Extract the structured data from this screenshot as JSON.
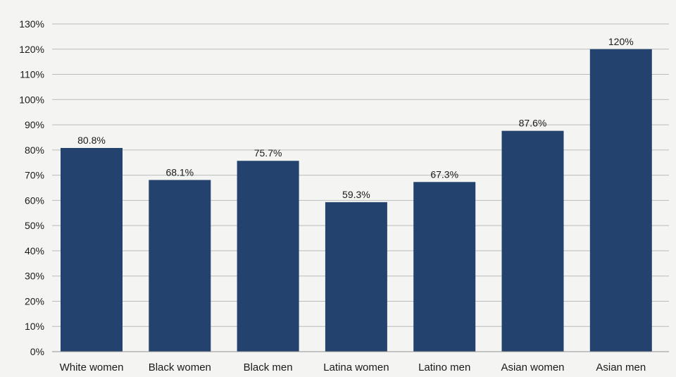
{
  "chart_data": {
    "type": "bar",
    "categories": [
      "White women",
      "Black women",
      "Black men",
      "Latina women",
      "Latino men",
      "Asian women",
      "Asian men"
    ],
    "values": [
      80.8,
      68.1,
      75.7,
      59.3,
      67.3,
      87.6,
      120
    ],
    "value_labels": [
      "80.8%",
      "68.1%",
      "75.7%",
      "59.3%",
      "67.3%",
      "87.6%",
      "120%"
    ],
    "ylim": [
      0,
      130
    ],
    "yticks": [
      0,
      10,
      20,
      30,
      40,
      50,
      60,
      70,
      80,
      90,
      100,
      110,
      120,
      130
    ],
    "ytick_labels": [
      "0%",
      "10%",
      "20%",
      "30%",
      "40%",
      "50%",
      "60%",
      "70%",
      "80%",
      "90%",
      "100%",
      "110%",
      "120%",
      "130%"
    ],
    "grid": true,
    "legend": "none",
    "bar_color": "#24426e",
    "background_color": "#f4f5f3"
  }
}
